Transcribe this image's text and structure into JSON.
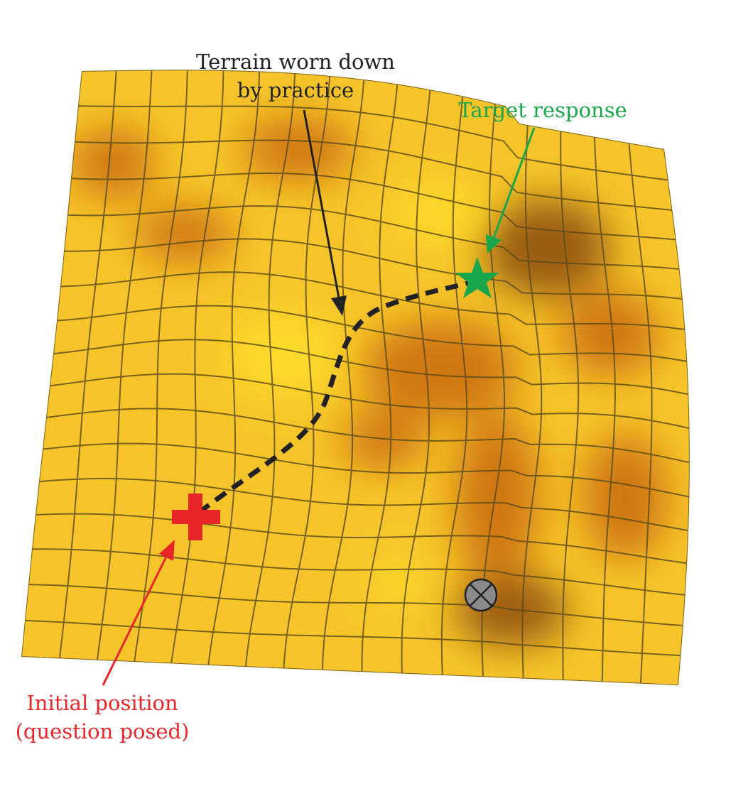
{
  "labels": {
    "terrain_line1": "Terrain worn down",
    "terrain_line2": "by practice",
    "target": "Target response",
    "initial_line1": "Initial position",
    "initial_line2": "(question posed)"
  },
  "colors": {
    "terrain_base": "#f7c52a",
    "terrain_dark": "#c8690f",
    "grid": "#5a4a1a",
    "path": "#222222",
    "target": "#1aa64a",
    "initial": "#e8262a",
    "obstacle": "#8a8a8a",
    "terrain_label": "#222222"
  },
  "icons": {
    "start": "red-plus",
    "goal": "green-star",
    "obstacle": "circled-x"
  }
}
